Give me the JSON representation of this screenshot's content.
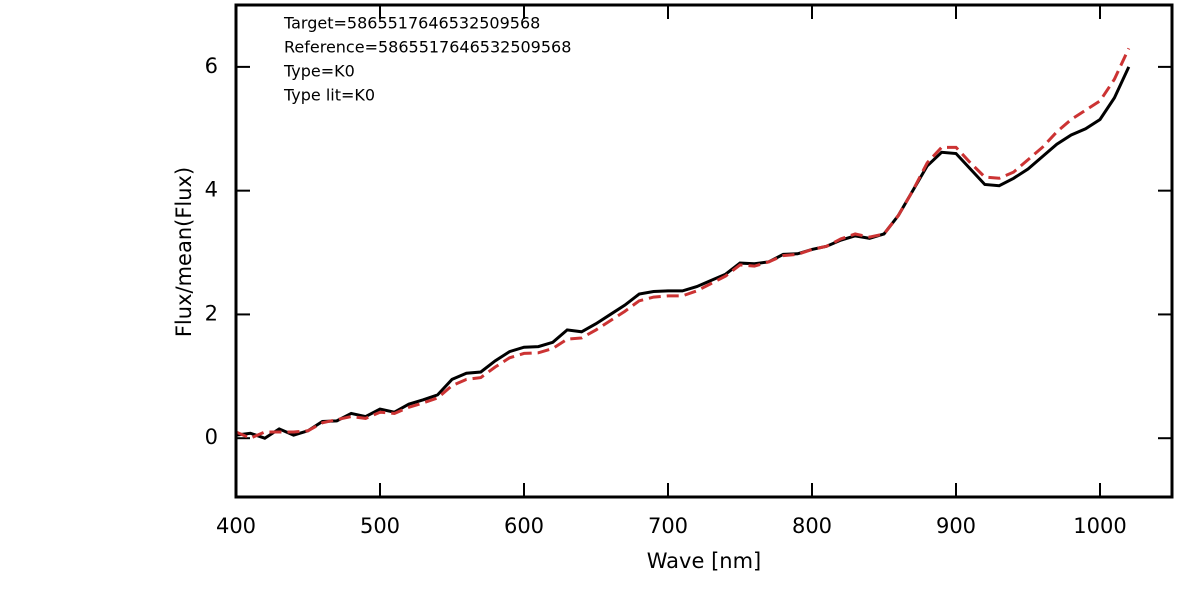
{
  "chart_data": {
    "type": "line",
    "xlabel": "Wave [nm]",
    "ylabel": "Flux/mean(Flux)",
    "annotations": [
      "Target=5865517646532509568",
      "Reference=5865517646532509568",
      "Type=K0",
      "Type lit=K0"
    ],
    "x": [
      400,
      410,
      420,
      430,
      440,
      450,
      460,
      470,
      480,
      490,
      500,
      510,
      520,
      530,
      540,
      550,
      560,
      570,
      580,
      590,
      600,
      610,
      620,
      630,
      640,
      650,
      660,
      670,
      680,
      690,
      700,
      710,
      720,
      730,
      740,
      750,
      760,
      770,
      780,
      790,
      800,
      810,
      820,
      830,
      840,
      850,
      860,
      870,
      880,
      890,
      900,
      910,
      920,
      930,
      940,
      950,
      960,
      970,
      980,
      990,
      1000,
      1010,
      1020
    ],
    "series": [
      {
        "color": "#000000",
        "dash": false,
        "values": [
          0.05,
          0.08,
          0.0,
          0.15,
          0.05,
          0.12,
          0.27,
          0.28,
          0.4,
          0.35,
          0.47,
          0.42,
          0.55,
          0.62,
          0.7,
          0.95,
          1.05,
          1.07,
          1.25,
          1.4,
          1.47,
          1.48,
          1.55,
          1.75,
          1.72,
          1.85,
          2.0,
          2.15,
          2.33,
          2.37,
          2.38,
          2.38,
          2.45,
          2.55,
          2.65,
          2.83,
          2.82,
          2.85,
          2.97,
          2.98,
          3.05,
          3.1,
          3.2,
          3.27,
          3.23,
          3.3,
          3.6,
          4.0,
          4.4,
          4.62,
          4.6,
          4.35,
          4.1,
          4.08,
          4.2,
          4.35,
          4.55,
          4.75,
          4.9,
          5.0,
          5.15,
          5.5,
          6.0
        ]
      },
      {
        "color": "#cc3333",
        "dash": true,
        "values": [
          0.1,
          0.0,
          0.1,
          0.1,
          0.1,
          0.12,
          0.25,
          0.3,
          0.35,
          0.32,
          0.42,
          0.4,
          0.5,
          0.57,
          0.65,
          0.85,
          0.95,
          0.98,
          1.15,
          1.3,
          1.37,
          1.38,
          1.45,
          1.6,
          1.62,
          1.75,
          1.9,
          2.05,
          2.22,
          2.28,
          2.3,
          2.3,
          2.38,
          2.5,
          2.62,
          2.8,
          2.78,
          2.85,
          2.95,
          2.97,
          3.05,
          3.1,
          3.22,
          3.3,
          3.25,
          3.3,
          3.6,
          4.0,
          4.45,
          4.7,
          4.7,
          4.45,
          4.22,
          4.2,
          4.3,
          4.5,
          4.7,
          4.95,
          5.15,
          5.3,
          5.45,
          5.8,
          6.3
        ]
      }
    ],
    "xlim": [
      400,
      1050
    ],
    "xticks": [
      400,
      500,
      600,
      700,
      800,
      900,
      1000
    ],
    "ylim": [
      -0.95,
      7
    ],
    "yticks": [
      0,
      2,
      4,
      6
    ]
  }
}
